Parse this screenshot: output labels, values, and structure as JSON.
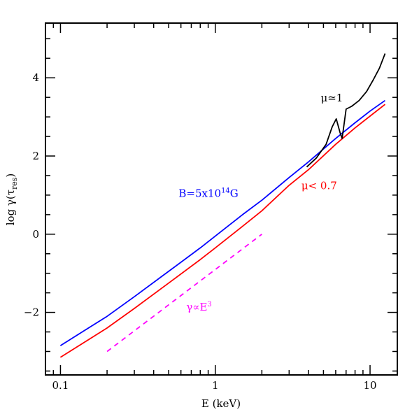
{
  "chart_data": {
    "type": "line",
    "xlabel": "E (keV)",
    "ylabel": "log γ(τ",
    "ylabel_sub": "res",
    "ylabel_close": ")",
    "x_scale": "log",
    "xlim": [
      0.08,
      15
    ],
    "ylim": [
      -3.6,
      5.4
    ],
    "x_ticks": [
      {
        "value": 0.1,
        "label": "0.1"
      },
      {
        "value": 1,
        "label": "1"
      },
      {
        "value": 10,
        "label": "10"
      }
    ],
    "y_ticks": [
      {
        "value": -2,
        "label": "−2"
      },
      {
        "value": 0,
        "label": "0"
      },
      {
        "value": 2,
        "label": "2"
      },
      {
        "value": 4,
        "label": "4"
      }
    ],
    "series": [
      {
        "name": "B=5x10¹⁴G",
        "color": "#0000ff",
        "dashed": false,
        "x": [
          0.1,
          0.2,
          0.3,
          0.5,
          0.8,
          1,
          1.5,
          2,
          3,
          4,
          6,
          8,
          10,
          12.5
        ],
        "y": [
          -2.85,
          -2.1,
          -1.6,
          -0.95,
          -0.35,
          -0.05,
          0.5,
          0.87,
          1.45,
          1.85,
          2.45,
          2.85,
          3.15,
          3.42
        ]
      },
      {
        "name": "μ< 0.7",
        "color": "#ff0000",
        "dashed": false,
        "x": [
          0.1,
          0.2,
          0.3,
          0.5,
          0.8,
          1,
          1.5,
          2,
          3,
          4,
          6,
          8,
          10,
          12.5
        ],
        "y": [
          -3.15,
          -2.4,
          -1.9,
          -1.25,
          -0.65,
          -0.35,
          0.2,
          0.6,
          1.25,
          1.65,
          2.3,
          2.72,
          3.02,
          3.32
        ]
      },
      {
        "name": "μ≃1",
        "color": "#000000",
        "dashed": false,
        "x": [
          3.9,
          4.5,
          5.2,
          5.7,
          6.05,
          6.4,
          6.6,
          7.0,
          7.6,
          8.5,
          9.5,
          10.5,
          11.5,
          12.5
        ],
        "y": [
          1.72,
          1.95,
          2.3,
          2.75,
          2.95,
          2.6,
          2.45,
          3.2,
          3.27,
          3.42,
          3.65,
          3.95,
          4.25,
          4.62
        ]
      },
      {
        "name": "γ∝E³",
        "color": "#ff00ff",
        "dashed": true,
        "x": [
          0.2,
          2
        ],
        "y": [
          -3.0,
          0.0
        ]
      }
    ],
    "annotations": [
      {
        "text": "B=5x10",
        "sup": "14",
        "suffix": "G",
        "color": "#0000ff",
        "x": 0.58,
        "y": 0.95
      },
      {
        "text": "μ< 0.7",
        "sup": "",
        "suffix": "",
        "color": "#ff0000",
        "x": 3.6,
        "y": 1.15
      },
      {
        "text": "μ≃1",
        "sup": "",
        "suffix": "",
        "color": "#000000",
        "x": 4.8,
        "y": 3.4
      },
      {
        "text": "γ∝E",
        "sup": "3",
        "suffix": "",
        "color": "#ff00ff",
        "x": 0.65,
        "y": -1.95
      }
    ]
  }
}
